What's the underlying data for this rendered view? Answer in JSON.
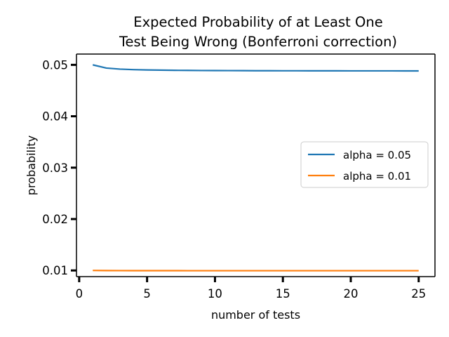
{
  "chart_data": {
    "type": "line",
    "title_lines": [
      "Expected Probability of at Least One",
      "Test Being Wrong (Bonferroni correction)"
    ],
    "xlabel": "number of tests",
    "ylabel": "probability",
    "xlim": [
      -0.2,
      26.2
    ],
    "ylim": [
      0.0088,
      0.0521
    ],
    "xticks": [
      0,
      5,
      10,
      15,
      20,
      25
    ],
    "yticks": [
      0.01,
      0.02,
      0.03,
      0.04,
      0.05
    ],
    "ytick_labels": [
      "0.01",
      "0.02",
      "0.03",
      "0.04",
      "0.05"
    ],
    "x": [
      1,
      2,
      3,
      4,
      5,
      6,
      7,
      8,
      9,
      10,
      11,
      12,
      13,
      14,
      15,
      16,
      17,
      18,
      19,
      20,
      21,
      22,
      23,
      24,
      25
    ],
    "series": [
      {
        "name": "alpha = 0.05",
        "color": "#1f77b4",
        "values": [
          0.05,
          0.04938,
          0.04917,
          0.04907,
          0.04901,
          0.04897,
          0.04894,
          0.04892,
          0.0489,
          0.04889,
          0.04888,
          0.04887,
          0.04886,
          0.04886,
          0.04885,
          0.04885,
          0.04884,
          0.04884,
          0.04884,
          0.04883,
          0.04883,
          0.04883,
          0.04883,
          0.04882,
          0.04882
        ]
      },
      {
        "name": "alpha = 0.01",
        "color": "#ff7f0e",
        "values": [
          0.01,
          0.009975,
          0.009967,
          0.009963,
          0.00996,
          0.009958,
          0.009957,
          0.009956,
          0.009956,
          0.009955,
          0.009955,
          0.009954,
          0.009954,
          0.009954,
          0.009954,
          0.009953,
          0.009953,
          0.009953,
          0.009953,
          0.009953,
          0.009953,
          0.009953,
          0.009953,
          0.009953,
          0.009952
        ]
      }
    ],
    "legend_position": "center-right",
    "grid": false
  }
}
